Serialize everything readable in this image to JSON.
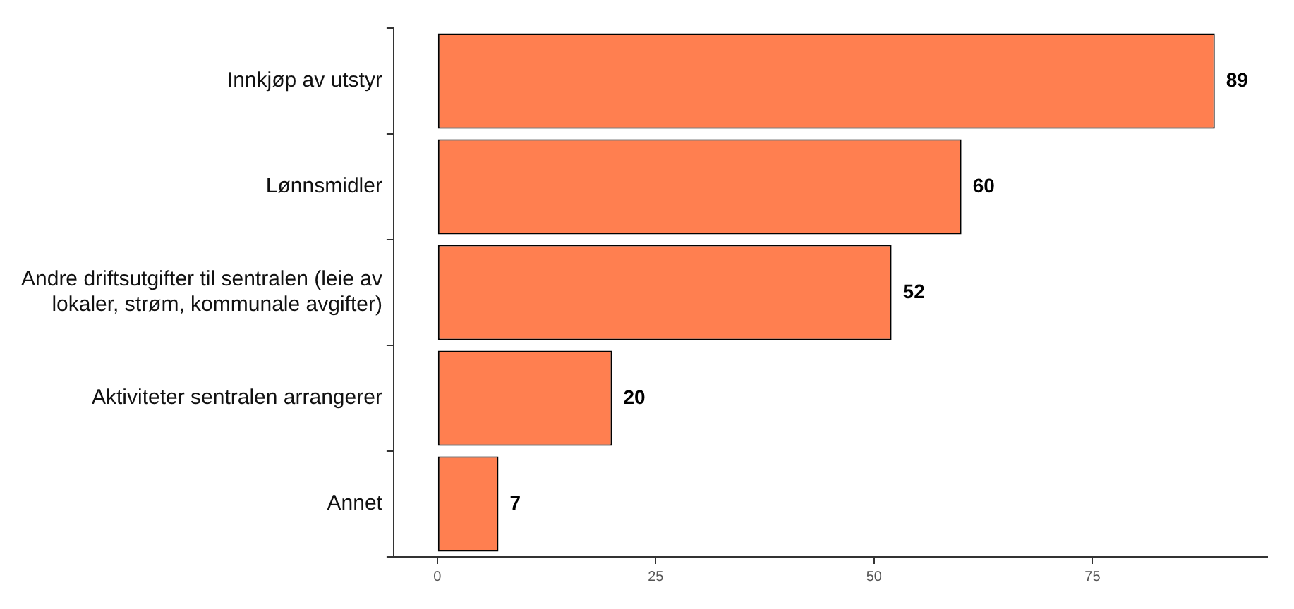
{
  "chart_data": {
    "type": "bar",
    "orientation": "horizontal",
    "categories": [
      "Innkjøp av utstyr",
      "Lønnsmidler",
      "Andre driftsutgifter til sentralen (leie av lokaler, strøm, kommunale avgifter)",
      "Aktiviteter sentralen arrangerer",
      "Annet"
    ],
    "values": [
      89,
      60,
      52,
      20,
      7
    ],
    "color": "#ff7f50",
    "xlim": [
      -5,
      95
    ],
    "xticks": [
      0,
      25,
      50,
      75
    ],
    "data_labels": true,
    "grid": false,
    "legend": false
  }
}
